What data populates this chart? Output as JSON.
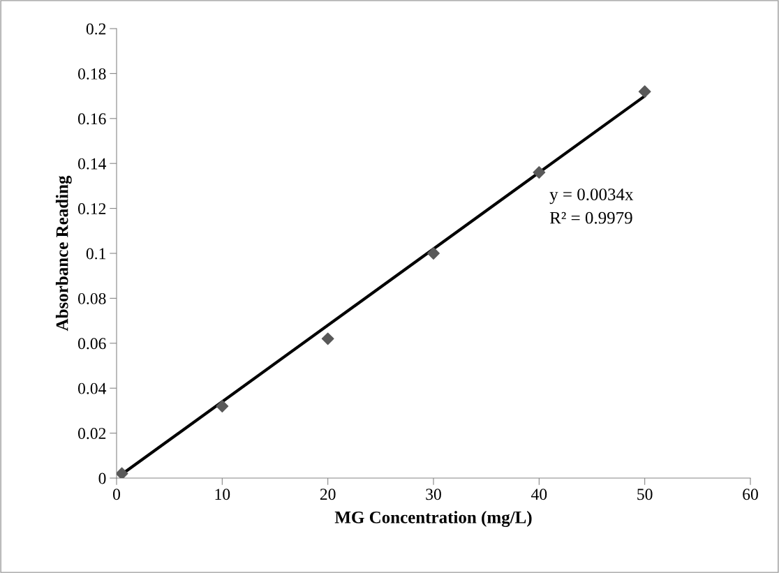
{
  "chart_data": {
    "type": "scatter",
    "xlabel": "MG Concentration (mg/L)",
    "ylabel": "Absorbance Reading",
    "x": [
      0.5,
      10,
      20,
      30,
      40,
      50
    ],
    "series": [
      {
        "color": "#595959",
        "marker": "diamond",
        "values": [
          0.002,
          0.032,
          0.062,
          0.1,
          0.136,
          0.172
        ]
      },
      {
        "type": "line",
        "color": "#000000",
        "marker": "none",
        "x": [
          0.5,
          50
        ],
        "values": [
          0.0017,
          0.17
        ]
      }
    ],
    "annotations": [
      "y = 0.0034x",
      "R² = 0.9979"
    ],
    "xlim": [
      0,
      60
    ],
    "xticks": [
      0,
      10,
      20,
      30,
      40,
      50,
      60
    ],
    "ylim": [
      0,
      0.2
    ],
    "yticks": [
      0,
      0.02,
      0.04,
      0.06,
      0.08,
      0.1,
      0.12,
      0.14,
      0.16,
      0.18,
      0.2
    ],
    "grid": false,
    "legend": false
  }
}
